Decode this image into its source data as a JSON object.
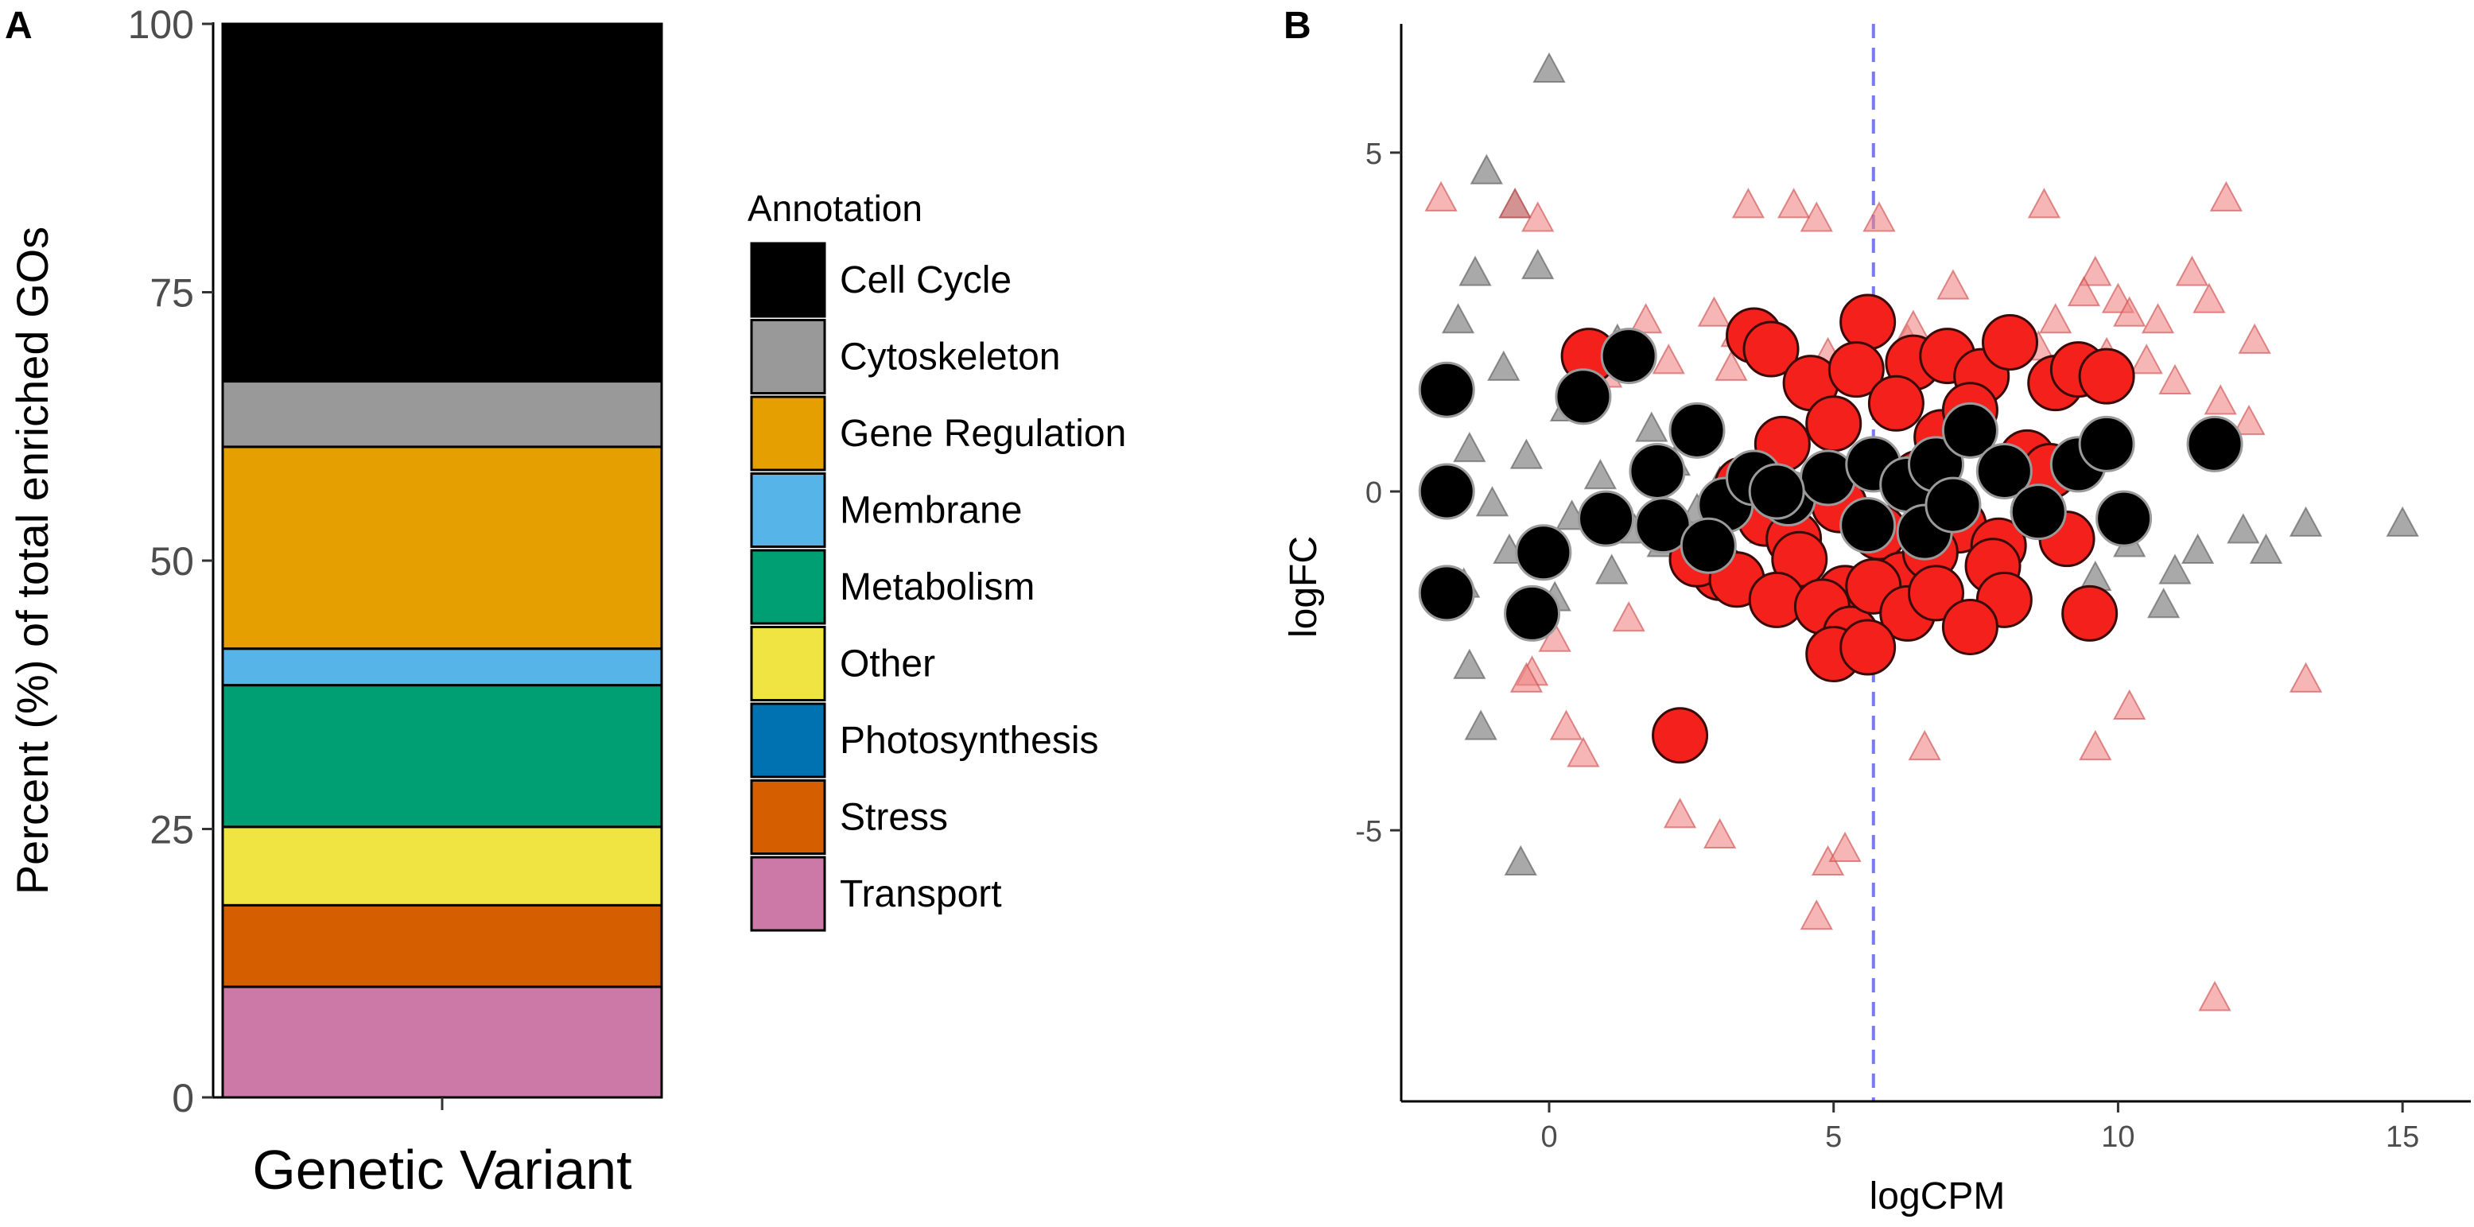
{
  "chart_data": [
    {
      "panel_label": "A",
      "type": "bar",
      "stacked": true,
      "categories": [
        "Genetic Variant"
      ],
      "ylabel": "Percent (%) of total enriched GOs",
      "xlabel": "",
      "ylim": [
        0,
        100
      ],
      "yticks": [
        "0",
        "25",
        "50",
        "75",
        "100"
      ],
      "legend_title": "Annotation",
      "series": [
        {
          "name": "Transport",
          "values": [
            10.3
          ],
          "color": "#CC79A7"
        },
        {
          "name": "Stress",
          "values": [
            7.6
          ],
          "color": "#D55E00"
        },
        {
          "name": "Photosynthesis",
          "values": [
            0.0
          ],
          "color": "#0072B2"
        },
        {
          "name": "Other",
          "values": [
            7.3
          ],
          "color": "#F0E442"
        },
        {
          "name": "Metabolism",
          "values": [
            13.2
          ],
          "color": "#009E73"
        },
        {
          "name": "Membrane",
          "values": [
            3.4
          ],
          "color": "#56B4E9"
        },
        {
          "name": "Gene Regulation",
          "values": [
            18.8
          ],
          "color": "#E69F00"
        },
        {
          "name": "Cytoskeleton",
          "values": [
            6.1
          ],
          "color": "#999999"
        },
        {
          "name": "Cell Cycle",
          "values": [
            33.3
          ],
          "color": "#000000"
        }
      ],
      "legend_order": [
        "Cell Cycle",
        "Cytoskeleton",
        "Gene Regulation",
        "Membrane",
        "Metabolism",
        "Other",
        "Photosynthesis",
        "Stress",
        "Transport"
      ]
    },
    {
      "panel_label": "B",
      "type": "scatter",
      "xlabel": "logCPM",
      "ylabel": "logFC",
      "xlim": [
        -2.6,
        16.2
      ],
      "ylim": [
        -9.0,
        6.9
      ],
      "xticks": [
        "0",
        "5",
        "10",
        "15"
      ],
      "yticks": [
        "-5",
        "0",
        "5"
      ],
      "vline": {
        "x": 5.7,
        "color": "#7b7bf0"
      },
      "marker_colors": {
        "red": "#f4201c",
        "black": "#000000",
        "grey_triangle": "#8c8c8c",
        "red_triangle": "#f08585"
      },
      "series": [
        {
          "name": "grey triangles",
          "marker": "triangle",
          "color": "#8c8c8c",
          "x": [
            0.0,
            -1.1,
            -0.6,
            -1.3,
            -0.2,
            0.6,
            -1.6,
            -0.8,
            1.2,
            0.3,
            -1.4,
            1.8,
            -0.4,
            0.9,
            2.2,
            -1.0,
            0.4,
            1.5,
            2.6,
            3.0,
            3.4,
            -0.7,
            1.1,
            2.0,
            3.8,
            4.3,
            0.1,
            -1.5,
            2.9,
            4.7,
            9.6,
            10.2,
            10.8,
            11.4,
            12.2,
            13.3,
            15.0,
            11.0,
            12.6,
            -1.4,
            -1.2,
            -0.5
          ],
          "y": [
            6.2,
            4.7,
            4.2,
            3.2,
            3.3,
            1.6,
            2.5,
            1.8,
            2.2,
            1.2,
            0.6,
            0.9,
            0.5,
            0.2,
            0.4,
            -0.2,
            -0.4,
            -0.6,
            -0.3,
            0.1,
            -0.2,
            -0.9,
            -1.2,
            -0.8,
            -0.6,
            -0.1,
            -1.6,
            -1.4,
            -1.0,
            0.2,
            -1.3,
            -0.8,
            -1.7,
            -0.9,
            -0.6,
            -0.5,
            -0.5,
            -1.2,
            -0.9,
            -2.6,
            -3.5,
            -5.5
          ]
        },
        {
          "name": "red triangles",
          "marker": "triangle",
          "color": "#f08585",
          "x": [
            -0.6,
            -1.9,
            -0.2,
            3.5,
            4.7,
            4.3,
            5.8,
            7.1,
            8.7,
            9.6,
            11.3,
            11.6,
            11.9,
            10.7,
            9.4,
            8.6,
            10.0,
            10.2,
            12.4,
            11.0,
            6.3,
            2.1,
            1.0,
            1.7,
            2.9,
            3.3,
            3.7,
            3.2,
            4.9,
            5.5,
            6.4,
            6.8,
            7.7,
            8.9,
            9.8,
            10.5,
            11.8,
            12.3,
            13.3,
            0.6,
            0.3,
            -0.3,
            2.3,
            3.0,
            4.9,
            5.2,
            4.7,
            6.6,
            9.6,
            10.2,
            11.7,
            1.4,
            0.1,
            -0.4
          ],
          "y": [
            4.2,
            4.3,
            4.0,
            4.2,
            4.0,
            4.2,
            4.0,
            3.0,
            4.2,
            3.2,
            3.2,
            2.8,
            4.3,
            2.5,
            2.9,
            2.1,
            2.8,
            2.6,
            2.2,
            1.6,
            2.2,
            1.9,
            1.7,
            2.5,
            2.6,
            2.3,
            2.2,
            1.8,
            2.0,
            2.5,
            2.4,
            1.8,
            1.7,
            2.5,
            2.0,
            1.9,
            1.3,
            1.0,
            -2.8,
            -3.9,
            -3.5,
            -2.7,
            -4.8,
            -5.1,
            -5.5,
            -5.3,
            -6.3,
            -3.8,
            -3.8,
            -3.2,
            -7.5,
            -1.9,
            -2.2,
            -2.8
          ]
        },
        {
          "name": "red circles",
          "marker": "circle",
          "color": "#f4201c",
          "x": [
            0.7,
            3.6,
            5.6,
            3.9,
            4.6,
            5.4,
            6.4,
            7.0,
            7.6,
            8.1,
            8.9,
            9.3,
            9.8,
            4.1,
            5.0,
            6.1,
            6.9,
            7.4,
            8.4,
            8.8,
            3.4,
            3.8,
            4.3,
            5.1,
            5.8,
            6.5,
            7.2,
            7.9,
            8.6,
            9.1,
            3.0,
            4.4,
            5.2,
            6.2,
            6.7,
            7.8,
            2.6,
            3.3,
            4.0,
            4.8,
            5.3,
            5.7,
            6.3,
            6.8,
            8.0,
            9.5,
            5.0,
            5.6,
            7.4,
            2.3
          ],
          "y": [
            2.0,
            2.3,
            2.5,
            2.1,
            1.6,
            1.8,
            1.9,
            2.0,
            1.7,
            2.2,
            1.6,
            1.8,
            1.7,
            0.7,
            1.0,
            1.3,
            0.8,
            1.2,
            0.5,
            0.3,
            0.1,
            -0.4,
            -0.7,
            -0.2,
            -0.6,
            0.2,
            -0.5,
            -0.8,
            -0.3,
            -0.7,
            -1.2,
            -1.0,
            -1.5,
            -1.3,
            -0.9,
            -1.1,
            -1.0,
            -1.3,
            -1.6,
            -1.7,
            -2.1,
            -1.4,
            -1.8,
            -1.5,
            -1.6,
            -1.8,
            -2.4,
            -2.3,
            -2.0,
            -3.6
          ]
        },
        {
          "name": "black circles",
          "marker": "circle",
          "color": "#000000",
          "x": [
            -1.8,
            -1.8,
            -1.8,
            -0.3,
            0.6,
            1.4,
            -0.1,
            1.0,
            2.0,
            2.6,
            3.1,
            3.6,
            4.2,
            4.9,
            5.7,
            6.3,
            6.8,
            7.4,
            8.0,
            8.6,
            9.3,
            9.8,
            10.1,
            11.7,
            6.6,
            5.6,
            4.0,
            2.8,
            1.9,
            7.1
          ],
          "y": [
            1.5,
            0.0,
            -1.5,
            -1.8,
            1.4,
            2.0,
            -0.9,
            -0.4,
            -0.5,
            0.9,
            -0.2,
            0.2,
            -0.1,
            0.2,
            0.4,
            0.1,
            0.4,
            0.9,
            0.3,
            -0.3,
            0.4,
            0.7,
            -0.4,
            0.7,
            -0.6,
            -0.5,
            0.0,
            -0.8,
            0.3,
            -0.2
          ]
        }
      ]
    }
  ]
}
